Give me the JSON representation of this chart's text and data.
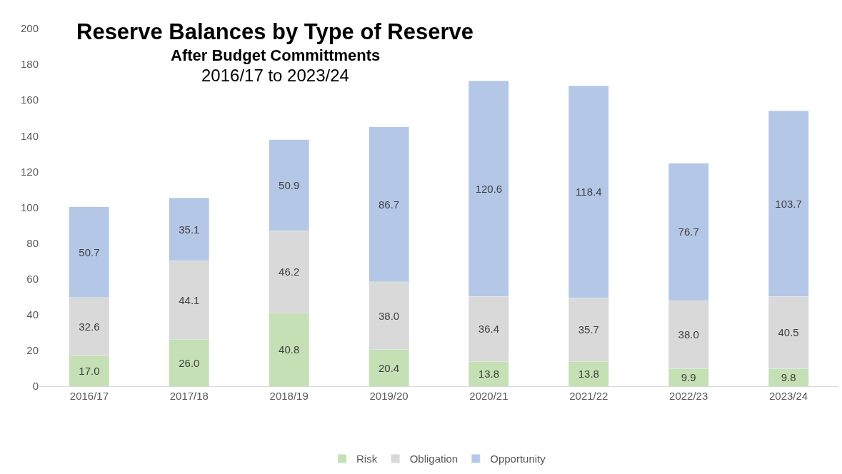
{
  "chart_data": {
    "type": "bar",
    "title": "Reserve Balances by Type of Reserve",
    "subtitle": "After Budget Committments",
    "annotations": [
      "2016/17 to 2023/24"
    ],
    "categories": [
      "2016/17",
      "2017/18",
      "2018/19",
      "2019/20",
      "2020/21",
      "2021/22",
      "2022/23",
      "2023/24"
    ],
    "stacked": true,
    "series": [
      {
        "name": "Risk",
        "color": "#c5e0b4",
        "values": [
          17.0,
          26.0,
          40.8,
          20.4,
          13.8,
          13.8,
          9.9,
          9.8
        ],
        "value_labels": [
          "17.0",
          "26.0",
          "40.8",
          "20.4",
          "13.8",
          "13.8",
          "9.9",
          "9.8"
        ]
      },
      {
        "name": "Obligation",
        "color": "#d9d9d9",
        "values": [
          32.6,
          44.1,
          46.2,
          38.0,
          36.4,
          35.7,
          38.0,
          40.5
        ],
        "value_labels": [
          "32.6",
          "44.1",
          "46.2",
          "38.0",
          "36.4",
          "35.7",
          "38.0",
          "40.5"
        ]
      },
      {
        "name": "Opportunity",
        "color": "#b4c7e7",
        "values": [
          50.7,
          35.1,
          50.9,
          86.7,
          120.6,
          118.4,
          76.7,
          103.7
        ],
        "value_labels": [
          "50.7",
          "35.1",
          "50.9",
          "86.7",
          "120.6",
          "118.4",
          "76.7",
          "103.7"
        ]
      }
    ],
    "ylim": [
      0,
      200
    ],
    "yticks": [
      0,
      20,
      40,
      60,
      80,
      100,
      120,
      140,
      160,
      180,
      200
    ],
    "grid": false,
    "legend": "bottom"
  }
}
